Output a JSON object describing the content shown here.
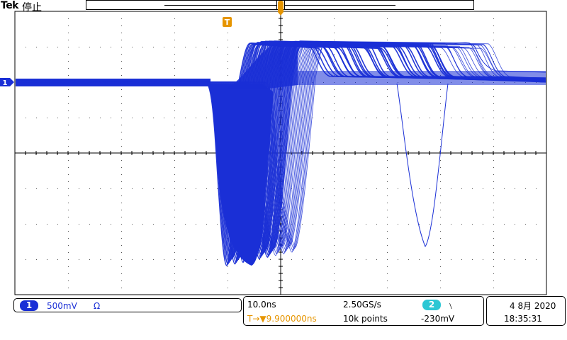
{
  "header": {
    "brand": "Tek",
    "status": "停止"
  },
  "markers": {
    "trigger_position": "T",
    "channel_ground": "1"
  },
  "channel1": {
    "number": "1",
    "scale": "500mV",
    "coupling_symbol": "Ω",
    "color": "#1a2fd6"
  },
  "horizontal": {
    "time_per_div": "10.0ns",
    "trigger_delay_prefix": "T→▼",
    "trigger_delay": "9.900000ns",
    "sample_rate": "2.50GS/s",
    "record_length": "10k points"
  },
  "trigger": {
    "source": "2",
    "slope_symbol": "﹨",
    "level": "-230mV",
    "color": "#2cc7d4"
  },
  "datetime": {
    "date": "4 8月 2020",
    "time": "18:35:31"
  }
}
